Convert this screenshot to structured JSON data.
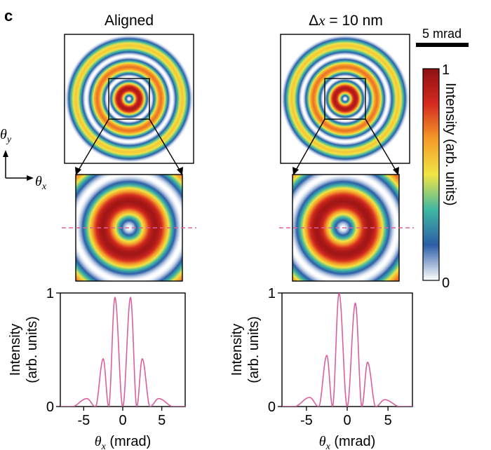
{
  "panel_label": "c",
  "scale_bar": {
    "label": "5 mrad"
  },
  "axes_labels": {
    "theta": "θ",
    "sub_y": "y",
    "sub_x": "x"
  },
  "columns": [
    {
      "title_plain": "Aligned"
    },
    {
      "title_prefix": "Δ",
      "title_var": "x",
      "title_suffix": " = 10 nm"
    }
  ],
  "colorbar": {
    "max_label": "1",
    "min_label": "0",
    "label": "Intensity (arb. units)"
  },
  "colors": {
    "line": "#d9609f",
    "dashed": "#e0609a",
    "cmap": [
      "#ffffff",
      "#2c5ea8",
      "#3fb7a3",
      "#f2e443",
      "#f59b2a",
      "#d42a1f",
      "#8e0f13"
    ]
  },
  "chart_data": [
    {
      "type": "line",
      "title": "Aligned",
      "xlabel": "θx (mrad)",
      "ylabel": "Intensity (arb. units)",
      "xlim": [
        -8,
        8
      ],
      "ylim": [
        0,
        1
      ],
      "x_ticks": [
        -5,
        0,
        5
      ],
      "y_ticks": [
        0,
        1
      ],
      "x_tick_labels": [
        "-5",
        "0",
        "5"
      ],
      "y_tick_labels": [
        "0",
        "1"
      ],
      "x": [
        -8,
        -6.5,
        -4.6,
        -3.5,
        -2.5,
        -1.8,
        -1.0,
        0,
        1.0,
        1.8,
        2.5,
        3.5,
        4.6,
        6.5,
        8
      ],
      "series": [
        {
          "values": [
            0.0,
            0.0,
            0.07,
            0.0,
            0.42,
            0.0,
            0.96,
            0.0,
            0.96,
            0.0,
            0.42,
            0.0,
            0.07,
            0.0,
            0.0
          ]
        }
      ]
    },
    {
      "type": "line",
      "title": "Δx = 10 nm",
      "xlabel": "θx (mrad)",
      "ylabel": "Intensity (arb. units)",
      "xlim": [
        -8,
        8
      ],
      "ylim": [
        0,
        1
      ],
      "x_ticks": [
        -5,
        0,
        5
      ],
      "y_ticks": [
        0,
        1
      ],
      "x_tick_labels": [
        "-5",
        "0",
        "5"
      ],
      "y_tick_labels": [
        "0",
        "1"
      ],
      "x": [
        -8,
        -6.5,
        -4.6,
        -3.5,
        -2.5,
        -1.8,
        -1.0,
        0,
        1.0,
        1.8,
        2.5,
        3.5,
        4.6,
        6.5,
        8
      ],
      "series": [
        {
          "values": [
            0.0,
            0.0,
            0.08,
            0.0,
            0.45,
            0.0,
            1.0,
            0.0,
            0.91,
            0.0,
            0.39,
            0.0,
            0.06,
            0.0,
            0.0
          ]
        }
      ]
    }
  ]
}
